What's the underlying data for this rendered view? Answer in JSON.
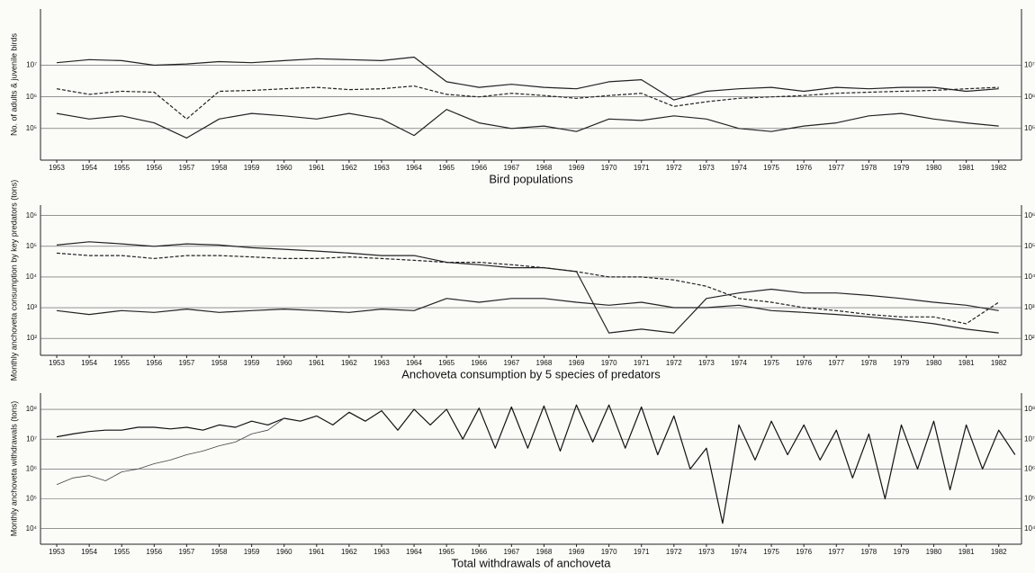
{
  "chart_data": [
    {
      "type": "line",
      "title": "Bird populations",
      "y_label": "No. of adults & juvenile birds",
      "log_y": true,
      "grid": true,
      "x": [
        1953,
        1954,
        1955,
        1956,
        1957,
        1958,
        1959,
        1960,
        1961,
        1962,
        1963,
        1964,
        1965,
        1966,
        1967,
        1968,
        1969,
        1970,
        1971,
        1972,
        1973,
        1974,
        1975,
        1976,
        1977,
        1978,
        1979,
        1980,
        1981,
        1982
      ],
      "xlim": [
        1952.5,
        1982.7
      ],
      "ylim": [
        10000,
        600000000
      ],
      "xticks": [
        1953,
        1954,
        1955,
        1956,
        1957,
        1958,
        1959,
        1960,
        1961,
        1962,
        1963,
        1964,
        1965,
        1966,
        1967,
        1968,
        1969,
        1970,
        1971,
        1972,
        1973,
        1974,
        1975,
        1976,
        1977,
        1978,
        1979,
        1980,
        1981,
        1982
      ],
      "yticks": [
        {
          "value": 100000,
          "label": "10⁵"
        },
        {
          "value": 1000000,
          "label": "10⁶"
        },
        {
          "value": 10000000,
          "label": "10⁷"
        }
      ],
      "series": [
        {
          "color": "#222222",
          "style": "solid",
          "values": [
            12000000,
            15000000,
            14000000,
            10000000,
            11000000,
            13000000,
            12000000,
            14000000,
            16000000,
            15000000,
            14000000,
            18000000,
            3000000,
            2000000,
            2500000,
            2000000,
            1800000,
            3000000,
            3500000,
            800000,
            1500000,
            1800000,
            2000000,
            1500000,
            2000000,
            1800000,
            2000000,
            2000000,
            1500000,
            1800000
          ]
        },
        {
          "color": "#222222",
          "style": "dashed",
          "values": [
            1800000,
            1200000,
            1500000,
            1400000,
            200000,
            1500000,
            1600000,
            1800000,
            2000000,
            1700000,
            1800000,
            2200000,
            1200000,
            1000000,
            1300000,
            1100000,
            900000,
            1100000,
            1300000,
            500000,
            700000,
            900000,
            1000000,
            1100000,
            1300000,
            1400000,
            1500000,
            1600000,
            1800000,
            2000000
          ]
        },
        {
          "color": "#222222",
          "style": "solid",
          "values": [
            300000,
            200000,
            250000,
            150000,
            50000,
            200000,
            300000,
            250000,
            200000,
            300000,
            200000,
            60000,
            400000,
            150000,
            100000,
            120000,
            80000,
            200000,
            180000,
            250000,
            200000,
            100000,
            80000,
            120000,
            150000,
            250000,
            300000,
            200000,
            150000,
            120000
          ]
        }
      ]
    },
    {
      "type": "line",
      "title": "Anchoveta consumption by 5 species of predators",
      "y_label": "Monthly anchoveta consumption by key predators (tons)",
      "log_y": true,
      "grid": true,
      "x": [
        1953,
        1954,
        1955,
        1956,
        1957,
        1958,
        1959,
        1960,
        1961,
        1962,
        1963,
        1964,
        1965,
        1966,
        1967,
        1968,
        1969,
        1970,
        1971,
        1972,
        1973,
        1974,
        1975,
        1976,
        1977,
        1978,
        1979,
        1980,
        1981,
        1982
      ],
      "xlim": [
        1952.5,
        1982.7
      ],
      "ylim": [
        28,
        2200000
      ],
      "xticks": [
        1953,
        1954,
        1955,
        1956,
        1957,
        1958,
        1959,
        1960,
        1961,
        1962,
        1963,
        1964,
        1965,
        1966,
        1967,
        1968,
        1969,
        1970,
        1971,
        1972,
        1973,
        1974,
        1975,
        1976,
        1977,
        1978,
        1979,
        1980,
        1981,
        1982
      ],
      "yticks": [
        {
          "value": 100,
          "label": "10²"
        },
        {
          "value": 1000,
          "label": "10³"
        },
        {
          "value": 10000,
          "label": "10⁴"
        },
        {
          "value": 100000,
          "label": "10⁵"
        },
        {
          "value": 1000000,
          "label": "10⁶"
        }
      ],
      "series": [
        {
          "color": "#222222",
          "style": "solid",
          "values": [
            110000,
            140000,
            120000,
            100000,
            120000,
            110000,
            90000,
            80000,
            70000,
            60000,
            50000,
            50000,
            30000,
            25000,
            20000,
            20000,
            15000,
            150,
            200,
            150,
            2000,
            3000,
            4000,
            3000,
            3000,
            2500,
            2000,
            1500,
            1200,
            800
          ]
        },
        {
          "color": "#222222",
          "style": "dashed",
          "values": [
            60000,
            50000,
            50000,
            40000,
            50000,
            50000,
            45000,
            40000,
            40000,
            45000,
            40000,
            35000,
            30000,
            30000,
            25000,
            20000,
            15000,
            10000,
            10000,
            8000,
            5000,
            2000,
            1500,
            1000,
            800,
            600,
            500,
            500,
            300,
            1500
          ]
        },
        {
          "color": "#222222",
          "style": "solid",
          "values": [
            800,
            600,
            800,
            700,
            900,
            700,
            800,
            900,
            800,
            700,
            900,
            800,
            2000,
            1500,
            2000,
            2000,
            1500,
            1200,
            1500,
            1000,
            1000,
            1200,
            800,
            700,
            600,
            500,
            400,
            300,
            200,
            150
          ]
        }
      ]
    },
    {
      "type": "line",
      "title": "Total withdrawals of anchoveta",
      "y_label": "Monthly anchoveta withdrawals (tons)",
      "log_y": true,
      "grid": true,
      "x": [
        1953,
        1953.5,
        1954,
        1954.5,
        1955,
        1955.5,
        1956,
        1956.5,
        1957,
        1957.5,
        1958,
        1958.5,
        1959,
        1959.5,
        1960,
        1960.5,
        1961,
        1961.5,
        1962,
        1962.5,
        1963,
        1963.5,
        1964,
        1964.5,
        1965,
        1965.5,
        1966,
        1966.5,
        1967,
        1967.5,
        1968,
        1968.5,
        1969,
        1969.5,
        1970,
        1970.5,
        1971,
        1971.5,
        1972,
        1972.5,
        1973,
        1973.5,
        1974,
        1974.5,
        1975,
        1975.5,
        1976,
        1976.5,
        1977,
        1977.5,
        1978,
        1978.5,
        1979,
        1979.5,
        1980,
        1980.5,
        1981,
        1981.5,
        1982,
        1982.5
      ],
      "xlim": [
        1952.5,
        1982.7
      ],
      "ylim": [
        3000,
        350000000
      ],
      "xticks": [
        1953,
        1954,
        1955,
        1956,
        1957,
        1958,
        1959,
        1960,
        1961,
        1962,
        1963,
        1964,
        1965,
        1966,
        1967,
        1968,
        1969,
        1970,
        1971,
        1972,
        1973,
        1974,
        1975,
        1976,
        1977,
        1978,
        1979,
        1980,
        1981,
        1982
      ],
      "yticks": [
        {
          "value": 10000,
          "label": "10⁴"
        },
        {
          "value": 100000,
          "label": "10⁵"
        },
        {
          "value": 1000000,
          "label": "10⁶"
        },
        {
          "value": 10000000,
          "label": "10⁷"
        },
        {
          "value": 100000000,
          "label": "10⁸"
        }
      ],
      "series": [
        {
          "color": "#111111",
          "style": "solid",
          "values": [
            12000000,
            15000000,
            18000000,
            20000000,
            20000000,
            25000000,
            25000000,
            22000000,
            25000000,
            20000000,
            30000000,
            25000000,
            40000000,
            30000000,
            50000000,
            40000000,
            60000000,
            30000000,
            80000000,
            40000000,
            90000000,
            20000000,
            100000000,
            30000000,
            100000000,
            10000000,
            110000000,
            5000000,
            120000000,
            5000000,
            130000000,
            4000000,
            140000000,
            8000000,
            140000000,
            5000000,
            120000000,
            3000000,
            60000000,
            1000000,
            5000000,
            15000,
            30000000,
            2000000,
            40000000,
            3000000,
            30000000,
            2000000,
            20000000,
            500000,
            15000000,
            100000,
            30000000,
            1000000,
            40000000,
            200000,
            30000000,
            1000000,
            20000000,
            3000000
          ]
        },
        {
          "color": "#444444",
          "style": "thin",
          "values": [
            300000,
            500000,
            600000,
            400000,
            800000,
            1000000,
            1500000,
            2000000,
            3000000,
            4000000,
            6000000,
            8000000,
            15000000,
            20000000,
            50000000,
            null,
            null,
            null,
            null,
            null,
            null,
            null,
            null,
            null,
            null,
            null,
            null,
            null,
            null,
            null,
            null,
            null,
            null,
            null,
            null,
            null,
            null,
            null,
            null,
            null,
            null,
            null,
            null,
            null,
            null,
            null,
            null,
            null,
            null,
            null,
            null,
            null,
            null,
            null,
            null,
            null,
            null,
            null,
            null,
            null
          ]
        }
      ]
    }
  ]
}
